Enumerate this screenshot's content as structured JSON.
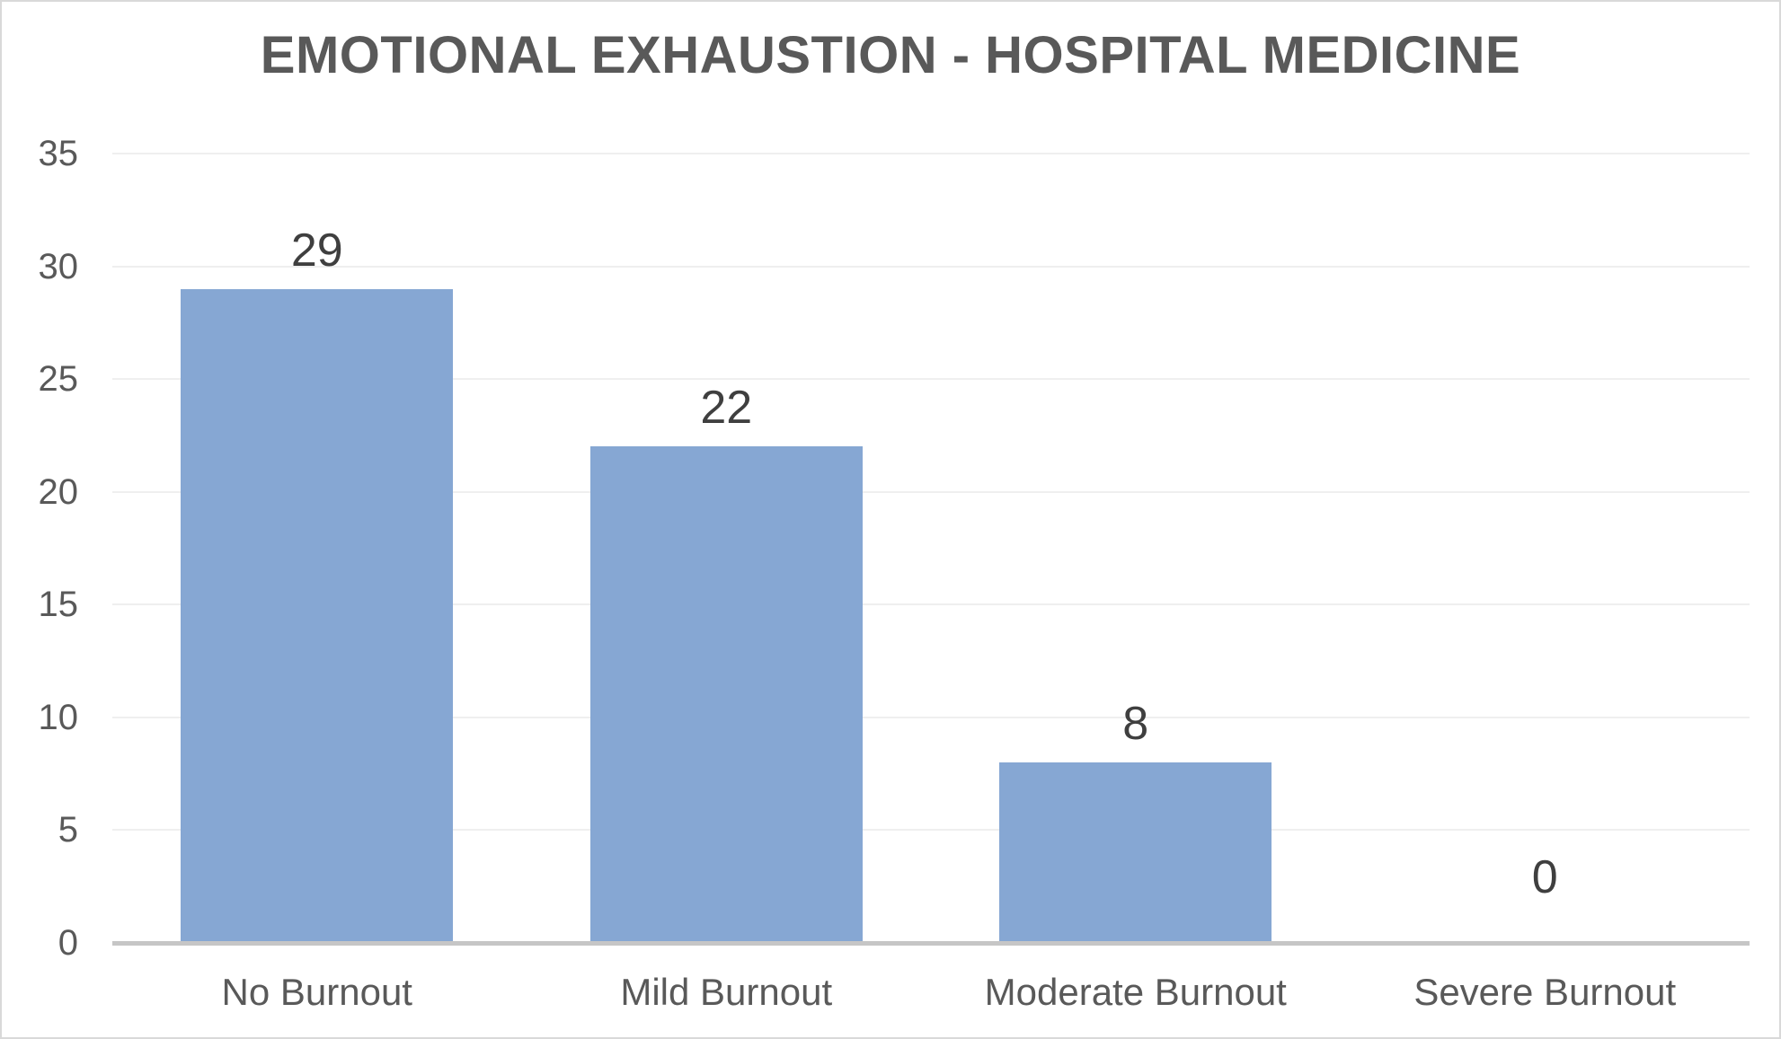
{
  "chart_data": {
    "type": "bar",
    "title": "EMOTIONAL EXHAUSTION - HOSPITAL MEDICINE",
    "categories": [
      "No Burnout",
      "Mild Burnout",
      "Moderate Burnout",
      "Severe Burnout"
    ],
    "values": [
      29,
      22,
      8,
      0
    ],
    "data_labels": [
      "29",
      "22",
      "8",
      "0"
    ],
    "xlabel": "",
    "ylabel": "",
    "ylim": [
      0,
      35
    ],
    "yticks": [
      0,
      5,
      10,
      15,
      20,
      25,
      30,
      35
    ],
    "grid": "horizontal-gridlines-on",
    "legend": "none",
    "colors": {
      "bar_fill": "#86a7d3",
      "title_text": "#595959",
      "axis_tick_text": "#595959",
      "category_text": "#595959",
      "data_label_text": "#3f3f3f",
      "gridline": "#efefef",
      "axis_line": "#c6c6c6",
      "figure_border": "#d9d9d9",
      "background": "#ffffff"
    }
  }
}
